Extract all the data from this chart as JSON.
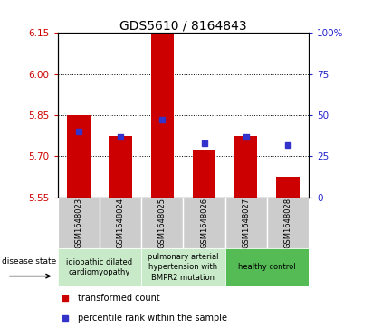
{
  "title": "GDS5610 / 8164843",
  "samples": [
    "GSM1648023",
    "GSM1648024",
    "GSM1648025",
    "GSM1648026",
    "GSM1648027",
    "GSM1648028"
  ],
  "transformed_count": [
    5.85,
    5.775,
    6.147,
    5.72,
    5.775,
    5.625
  ],
  "percentile_rank": [
    40,
    37,
    47,
    33,
    37,
    32
  ],
  "ylim_left": [
    5.55,
    6.15
  ],
  "ylim_right": [
    0,
    100
  ],
  "yticks_left": [
    5.55,
    5.7,
    5.85,
    6.0,
    6.15
  ],
  "yticks_right": [
    0,
    25,
    50,
    75,
    100
  ],
  "bar_bottom": 5.55,
  "bar_color": "#cc0000",
  "square_color": "#3333cc",
  "plot_bg": "#ffffff",
  "sample_box_color": "#cccccc",
  "disease_groups": [
    {
      "indices": [
        0,
        1
      ],
      "label": "idiopathic dilated\ncardiomyopathy",
      "color": "#c8eac8"
    },
    {
      "indices": [
        2,
        3
      ],
      "label": "pulmonary arterial\nhypertension with\nBMPR2 mutation",
      "color": "#c8eac8"
    },
    {
      "indices": [
        4,
        5
      ],
      "label": "healthy control",
      "color": "#55bb55"
    }
  ],
  "legend_red_label": "transformed count",
  "legend_blue_label": "percentile rank within the sample",
  "disease_state_label": "disease state",
  "tick_fontsize": 7.5,
  "title_fontsize": 10,
  "sample_fontsize": 6,
  "legend_fontsize": 7,
  "disease_fontsize": 6,
  "bar_width": 0.55
}
